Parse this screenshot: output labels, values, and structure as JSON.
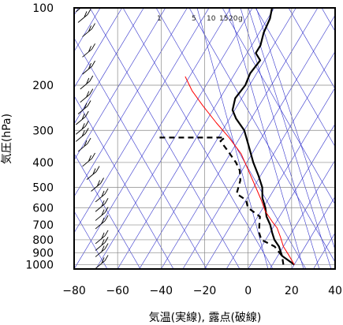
{
  "chart_data": {
    "type": "line",
    "diagram": "skew-T",
    "xlabel": "気温(実線), 露点(破線)",
    "ylabel": "気圧(hPa)",
    "x_ticks": [
      -80,
      -60,
      -40,
      -20,
      0,
      20,
      40
    ],
    "y_ticks": [
      100,
      200,
      300,
      400,
      500,
      600,
      700,
      800,
      900,
      1000
    ],
    "xlim": [
      -80,
      40
    ],
    "ylim": [
      1040,
      100
    ],
    "y_scale": "log",
    "mixing_ratio_labels": [
      "1",
      "5",
      "10",
      "15",
      "20",
      "g"
    ],
    "colors": {
      "temperature": "#000000",
      "dewpoint": "#000000",
      "parcel": "#ff0000",
      "guide_lines": "#3333cc",
      "grid": "#888888",
      "wind": "#000000"
    },
    "series": [
      {
        "role": "temperature",
        "style": "solid",
        "points": [
          [
            20.0,
            1000
          ],
          [
            12.0,
            925
          ],
          [
            8.0,
            850
          ],
          [
            4.0,
            800
          ],
          [
            1.0,
            750
          ],
          [
            -2.0,
            700
          ],
          [
            -6.0,
            650
          ],
          [
            -9.0,
            600
          ],
          [
            -13.0,
            550
          ],
          [
            -16.0,
            500
          ],
          [
            -21.0,
            450
          ],
          [
            -27.0,
            400
          ],
          [
            -33.0,
            350
          ],
          [
            -40.0,
            300
          ],
          [
            -47.0,
            270
          ],
          [
            -51.0,
            250
          ],
          [
            -53.0,
            225
          ],
          [
            -52.0,
            200
          ],
          [
            -53.0,
            180
          ],
          [
            -52.0,
            160
          ],
          [
            -56.0,
            150
          ],
          [
            -56.0,
            140
          ],
          [
            -58.0,
            125
          ],
          [
            -59.0,
            110
          ],
          [
            -61.0,
            100
          ]
        ]
      },
      {
        "role": "dewpoint",
        "style": "dashed",
        "points": [
          [
            15.0,
            1000
          ],
          [
            12.0,
            925
          ],
          [
            6.0,
            850
          ],
          [
            -2.0,
            800
          ],
          [
            -5.0,
            750
          ],
          [
            -7.0,
            700
          ],
          [
            -9.0,
            650
          ],
          [
            -17.0,
            600
          ],
          [
            -20.0,
            560
          ],
          [
            -26.0,
            530
          ],
          [
            -27.0,
            500
          ],
          [
            -28.0,
            470
          ],
          [
            -31.0,
            430
          ],
          [
            -35.0,
            400
          ],
          [
            -42.0,
            360
          ],
          [
            -48.0,
            330
          ],
          [
            -47.0,
            320
          ],
          [
            -78.0,
            320
          ]
        ]
      },
      {
        "role": "parcel",
        "style": "solid",
        "points": [
          [
            20.0,
            1000
          ],
          [
            15.0,
            920
          ],
          [
            10.0,
            850
          ],
          [
            6.0,
            780
          ],
          [
            2.0,
            720
          ],
          [
            -2.0,
            680
          ],
          [
            -8.0,
            620
          ],
          [
            -13.0,
            560
          ],
          [
            -19.0,
            500
          ],
          [
            -27.0,
            430
          ],
          [
            -35.0,
            370
          ],
          [
            -45.0,
            320
          ],
          [
            -55.0,
            280
          ],
          [
            -66.0,
            240
          ],
          [
            -75.0,
            210
          ],
          [
            -82.0,
            185
          ]
        ]
      }
    ],
    "wind_barbs": [
      {
        "p": 1000,
        "x": -68
      },
      {
        "p": 900,
        "x": -68
      },
      {
        "p": 850,
        "x": -68
      },
      {
        "p": 800,
        "x": -68
      },
      {
        "p": 700,
        "x": -68
      },
      {
        "p": 650,
        "x": -68
      },
      {
        "p": 600,
        "x": -68
      },
      {
        "p": 550,
        "x": -68
      },
      {
        "p": 500,
        "x": -70
      },
      {
        "p": 450,
        "x": -72
      },
      {
        "p": 400,
        "x": -74
      },
      {
        "p": 350,
        "x": -76
      },
      {
        "p": 320,
        "x": -77
      },
      {
        "p": 300,
        "x": -77
      },
      {
        "p": 275,
        "x": -77
      },
      {
        "p": 250,
        "x": -76
      },
      {
        "p": 225,
        "x": -75
      },
      {
        "p": 200,
        "x": -75
      },
      {
        "p": 175,
        "x": -74
      },
      {
        "p": 150,
        "x": -74
      },
      {
        "p": 125,
        "x": -74
      },
      {
        "p": 110,
        "x": -76
      },
      {
        "p": 100,
        "x": -77
      }
    ]
  }
}
